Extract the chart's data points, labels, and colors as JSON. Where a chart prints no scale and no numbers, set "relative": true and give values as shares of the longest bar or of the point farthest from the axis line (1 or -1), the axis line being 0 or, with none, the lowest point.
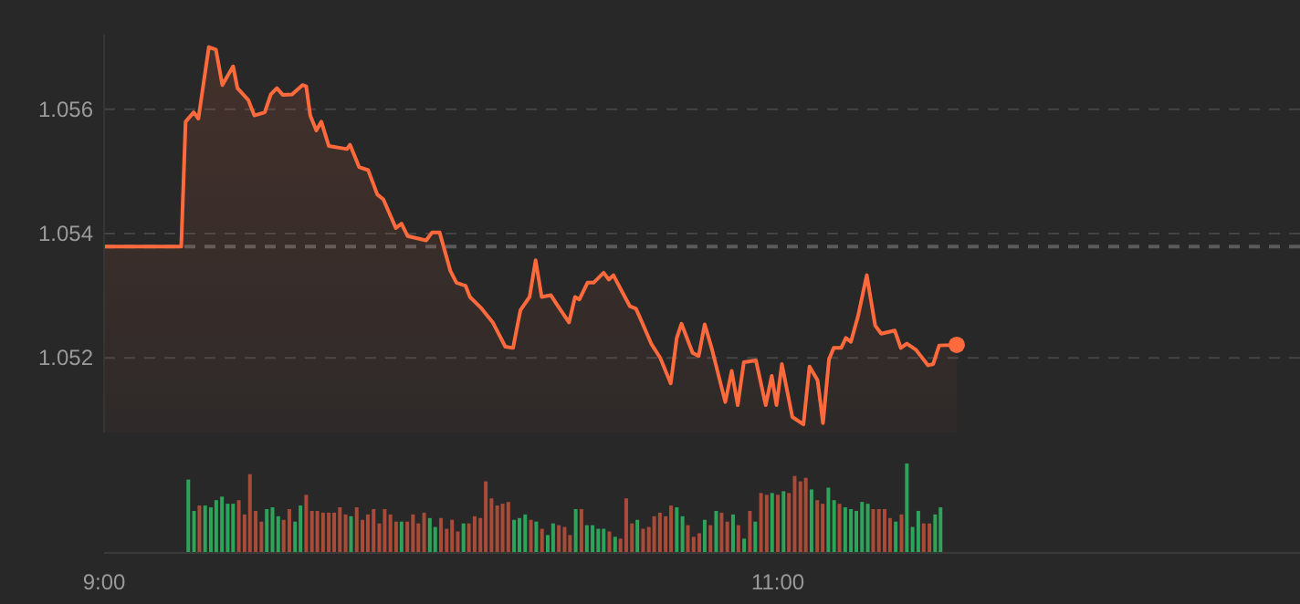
{
  "chart_data": [
    {
      "type": "area",
      "x": [
        9,
        9.229,
        9.242,
        9.266,
        9.28,
        9.311,
        9.332,
        9.351,
        9.383,
        9.396,
        9.428,
        9.446,
        9.477,
        9.495,
        9.513,
        9.531,
        9.558,
        9.589,
        9.6,
        9.612,
        9.63,
        9.645,
        9.667,
        9.721,
        9.73,
        9.757,
        9.784,
        9.811,
        9.829,
        9.866,
        9.883,
        9.901,
        9.956,
        9.974,
        9.996,
        10.028,
        10.046,
        10.073,
        10.086,
        10.118,
        10.154,
        10.191,
        10.214,
        10.236,
        10.263,
        10.281,
        10.299,
        10.326,
        10.344,
        10.38,
        10.398,
        10.411,
        10.435,
        10.453,
        10.483,
        10.498,
        10.512,
        10.538,
        10.561,
        10.579,
        10.597,
        10.624,
        10.651,
        10.682,
        10.7,
        10.714,
        10.747,
        10.765,
        10.783,
        10.805,
        10.844,
        10.863,
        10.881,
        10.899,
        10.935,
        10.964,
        10.982,
        10.996,
        11.012,
        11.043,
        11.076,
        11.094,
        11.118,
        11.134,
        11.152,
        11.166,
        11.188,
        11.202,
        11.217,
        11.238,
        11.264,
        11.289,
        11.307,
        11.347,
        11.365,
        11.383,
        11.41,
        11.446,
        11.461,
        11.479,
        11.531
      ],
      "series": [
        {
          "type": "area",
          "color": "#ff6a3d",
          "values": [
            1.05379,
            1.05379,
            1.0558,
            1.05595,
            1.05585,
            1.057,
            1.05696,
            1.05639,
            1.05669,
            1.05634,
            1.05615,
            1.0559,
            1.05595,
            1.05624,
            1.05634,
            1.05623,
            1.05624,
            1.05639,
            1.05637,
            1.0559,
            1.05566,
            1.0558,
            1.05541,
            1.05536,
            1.05543,
            1.05507,
            1.05502,
            1.05463,
            1.05455,
            1.05409,
            1.05416,
            1.05396,
            1.05389,
            1.05402,
            1.05402,
            1.0534,
            1.05321,
            1.05316,
            1.05298,
            1.05281,
            1.05257,
            1.05218,
            1.05216,
            1.05277,
            1.05298,
            1.05357,
            1.05298,
            1.05301,
            1.05286,
            1.05257,
            1.05298,
            1.05294,
            1.05321,
            1.05321,
            1.05337,
            1.05326,
            1.05333,
            1.05306,
            1.05283,
            1.05279,
            1.05257,
            1.05223,
            1.052,
            1.05159,
            1.05232,
            1.05255,
            1.05208,
            1.05203,
            1.05254,
            1.05213,
            1.05129,
            1.05179,
            1.05124,
            1.05193,
            1.05196,
            1.05124,
            1.05171,
            1.05124,
            1.0519,
            1.05105,
            1.05093,
            1.05186,
            1.05164,
            1.05095,
            1.05198,
            1.05216,
            1.05216,
            1.05232,
            1.05226,
            1.05267,
            1.05333,
            1.05252,
            1.05239,
            1.05244,
            1.05216,
            1.05223,
            1.05213,
            1.05188,
            1.0519,
            1.0522,
            1.05221
          ]
        },
        {
          "type": "scatter",
          "color": "#ff6a3d",
          "x": [
            11.531
          ],
          "values": [
            1.05221
          ]
        }
      ],
      "xlim": [
        9,
        12.55
      ],
      "xticks": [
        {
          "value": 9,
          "label": "9:00"
        },
        {
          "value": 11,
          "label": "11:00"
        }
      ],
      "ylim": [
        1.0508,
        1.0572
      ],
      "yticks": [
        1.052,
        1.054,
        1.056
      ],
      "grid": "y",
      "ref_lines": [
        {
          "axis": "y",
          "value": 1.05379,
          "color": "#5a5a5a",
          "line_style": "dashed"
        }
      ]
    },
    {
      "type": "bar",
      "relative": true,
      "xlim": [
        9,
        12.55
      ],
      "x": [
        9.25,
        9.267,
        9.283,
        9.3,
        9.317,
        9.333,
        9.35,
        9.367,
        9.383,
        9.4,
        9.417,
        9.433,
        9.45,
        9.467,
        9.483,
        9.5,
        9.517,
        9.533,
        9.55,
        9.567,
        9.583,
        9.6,
        9.617,
        9.633,
        9.65,
        9.667,
        9.683,
        9.7,
        9.717,
        9.733,
        9.75,
        9.767,
        9.783,
        9.8,
        9.817,
        9.833,
        9.85,
        9.867,
        9.883,
        9.9,
        9.917,
        9.933,
        9.95,
        9.967,
        9.983,
        10,
        10.017,
        10.033,
        10.05,
        10.067,
        10.083,
        10.1,
        10.117,
        10.133,
        10.15,
        10.167,
        10.183,
        10.2,
        10.217,
        10.233,
        10.25,
        10.267,
        10.283,
        10.3,
        10.317,
        10.333,
        10.35,
        10.367,
        10.383,
        10.4,
        10.417,
        10.433,
        10.45,
        10.467,
        10.483,
        10.5,
        10.517,
        10.533,
        10.55,
        10.567,
        10.583,
        10.6,
        10.617,
        10.633,
        10.65,
        10.667,
        10.683,
        10.7,
        10.717,
        10.733,
        10.75,
        10.767,
        10.783,
        10.8,
        10.817,
        10.833,
        10.85,
        10.867,
        10.883,
        10.9,
        10.917,
        10.933,
        10.95,
        10.967,
        10.983,
        11,
        11.017,
        11.033,
        11.05,
        11.067,
        11.083,
        11.1,
        11.117,
        11.133,
        11.15,
        11.167,
        11.183,
        11.2,
        11.217,
        11.233,
        11.25,
        11.267,
        11.283,
        11.3,
        11.317,
        11.333,
        11.35,
        11.367,
        11.383,
        11.4,
        11.417,
        11.433,
        11.45,
        11.467,
        11.483
      ],
      "values": [
        0.82,
        0.47,
        0.53,
        0.53,
        0.51,
        0.59,
        0.63,
        0.55,
        0.55,
        0.59,
        0.43,
        0.88,
        0.47,
        0.35,
        0.49,
        0.51,
        0.41,
        0.37,
        0.49,
        0.35,
        0.53,
        0.65,
        0.47,
        0.47,
        0.45,
        0.45,
        0.45,
        0.51,
        0.43,
        0.41,
        0.51,
        0.37,
        0.43,
        0.49,
        0.33,
        0.49,
        0.43,
        0.35,
        0.35,
        0.35,
        0.43,
        0.33,
        0.45,
        0.39,
        0.29,
        0.39,
        0.27,
        0.37,
        0.24,
        0.33,
        0.33,
        0.41,
        0.39,
        0.8,
        0.61,
        0.53,
        0.55,
        0.57,
        0.37,
        0.39,
        0.43,
        0.37,
        0.35,
        0.27,
        0.2,
        0.33,
        0.31,
        0.29,
        0.2,
        0.49,
        0.49,
        0.31,
        0.31,
        0.27,
        0.27,
        0.24,
        0.18,
        0.16,
        0.61,
        0.33,
        0.37,
        0.27,
        0.29,
        0.41,
        0.45,
        0.41,
        0.53,
        0.51,
        0.41,
        0.31,
        0.18,
        0.22,
        0.37,
        0.31,
        0.47,
        0.45,
        0.35,
        0.43,
        0.31,
        0.16,
        0.47,
        0.35,
        0.67,
        0.65,
        0.67,
        0.65,
        0.69,
        0.67,
        0.86,
        0.8,
        0.84,
        0.71,
        0.59,
        0.55,
        0.73,
        0.59,
        0.55,
        0.51,
        0.49,
        0.47,
        0.57,
        0.55,
        0.49,
        0.49,
        0.49,
        0.39,
        0.35,
        0.43,
        1,
        0.29,
        0.47,
        0.33,
        0.33,
        0.43,
        0.51
      ],
      "colors": [
        "#2ea35a",
        "#2ea35a",
        "#a84b38",
        "#2ea35a",
        "#2ea35a",
        "#2ea35a",
        "#2ea35a",
        "#2ea35a",
        "#2ea35a",
        "#a84b38",
        "#a84b38",
        "#a84b38",
        "#a84b38",
        "#a84b38",
        "#2ea35a",
        "#2ea35a",
        "#2ea35a",
        "#a84b38",
        "#a84b38",
        "#2ea35a",
        "#2ea35a",
        "#a84b38",
        "#a84b38",
        "#a84b38",
        "#a84b38",
        "#a84b38",
        "#a84b38",
        "#a84b38",
        "#a84b38",
        "#2ea35a",
        "#a84b38",
        "#a84b38",
        "#a84b38",
        "#a84b38",
        "#a84b38",
        "#a84b38",
        "#a84b38",
        "#a84b38",
        "#2ea35a",
        "#a84b38",
        "#a84b38",
        "#a84b38",
        "#a84b38",
        "#2ea35a",
        "#2ea35a",
        "#a84b38",
        "#a84b38",
        "#a84b38",
        "#a84b38",
        "#2ea35a",
        "#a84b38",
        "#a84b38",
        "#a84b38",
        "#a84b38",
        "#a84b38",
        "#a84b38",
        "#a84b38",
        "#a84b38",
        "#2ea35a",
        "#2ea35a",
        "#2ea35a",
        "#a84b38",
        "#2ea35a",
        "#a84b38",
        "#2ea35a",
        "#2ea35a",
        "#a84b38",
        "#a84b38",
        "#a84b38",
        "#2ea35a",
        "#a84b38",
        "#2ea35a",
        "#2ea35a",
        "#2ea35a",
        "#2ea35a",
        "#a84b38",
        "#2ea35a",
        "#a84b38",
        "#a84b38",
        "#a84b38",
        "#2ea35a",
        "#a84b38",
        "#a84b38",
        "#a84b38",
        "#a84b38",
        "#a84b38",
        "#a84b38",
        "#2ea35a",
        "#2ea35a",
        "#a84b38",
        "#a84b38",
        "#a84b38",
        "#2ea35a",
        "#a84b38",
        "#2ea35a",
        "#a84b38",
        "#a84b38",
        "#2ea35a",
        "#a84b38",
        "#2ea35a",
        "#a84b38",
        "#2ea35a",
        "#a84b38",
        "#a84b38",
        "#2ea35a",
        "#a84b38",
        "#2ea35a",
        "#a84b38",
        "#a84b38",
        "#a84b38",
        "#a84b38",
        "#2ea35a",
        "#a84b38",
        "#a84b38",
        "#2ea35a",
        "#2ea35a",
        "#a84b38",
        "#2ea35a",
        "#2ea35a",
        "#2ea35a",
        "#2ea35a",
        "#2ea35a",
        "#a84b38",
        "#a84b38",
        "#a84b38",
        "#a84b38",
        "#2ea35a",
        "#a84b38",
        "#2ea35a",
        "#2ea35a",
        "#2ea35a",
        "#a84b38",
        "#a84b38",
        "#2ea35a",
        "#2ea35a"
      ]
    }
  ]
}
